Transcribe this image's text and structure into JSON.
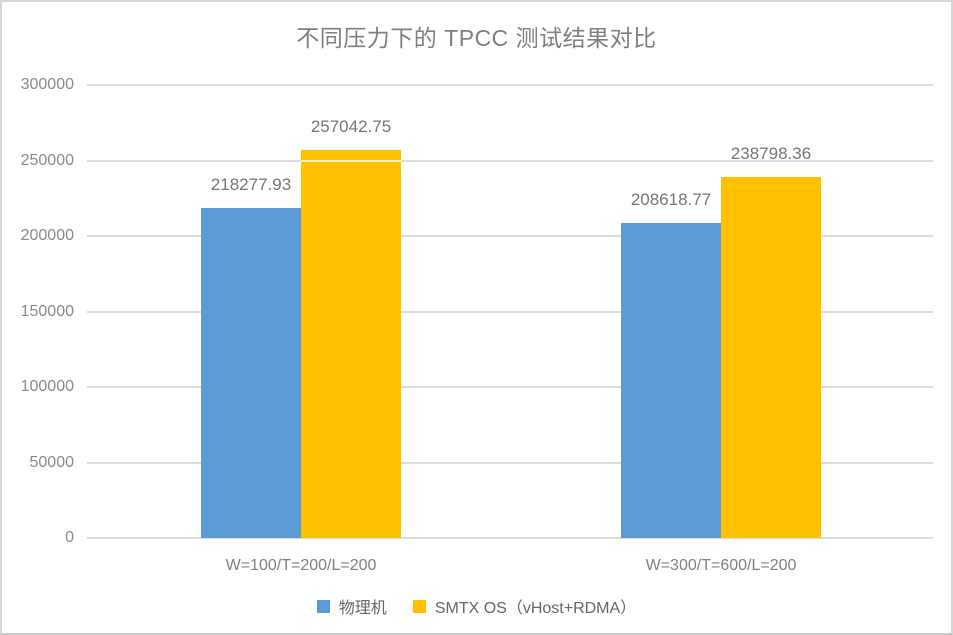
{
  "chart_data": {
    "type": "bar",
    "title": "不同压力下的 TPCC 测试结果对比",
    "categories": [
      "W=100/T=200/L=200",
      "W=300/T=600/L=200"
    ],
    "series": [
      {
        "name": "物理机",
        "color": "#5B9BD5",
        "values": [
          218277.93,
          208618.77
        ]
      },
      {
        "name": "SMTX OS（vHost+RDMA）",
        "color": "#FFC000",
        "values": [
          257042.75,
          238798.36
        ]
      }
    ],
    "data_labels": [
      [
        "218277.93",
        "208618.77"
      ],
      [
        "257042.75",
        "238798.36"
      ]
    ],
    "xlabel": "",
    "ylabel": "",
    "ylim": [
      0,
      300000
    ],
    "y_ticks": [
      0,
      50000,
      100000,
      150000,
      200000,
      250000,
      300000
    ],
    "y_tick_labels": [
      "0",
      "50000",
      "100000",
      "150000",
      "200000",
      "250000",
      "300000"
    ],
    "grid": true,
    "legend_position": "bottom"
  },
  "colors": {
    "gridline": "#dcdcdc",
    "axis_text": "#8a8a8a",
    "title_text": "#7f7f7f",
    "value_label_text": "#757575",
    "legend_text": "#666666",
    "background": "#ffffff",
    "border": "#d6d6d6"
  }
}
